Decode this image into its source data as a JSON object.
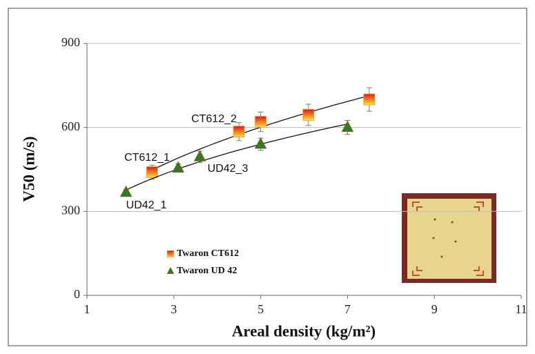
{
  "chart_data": {
    "type": "scatter",
    "x_label": "Areal density (kg/m²)",
    "y_label": "V50 (m/s)",
    "xlim": [
      1,
      11
    ],
    "xticks": [
      1,
      3,
      5,
      7,
      9,
      11
    ],
    "ylim": [
      0,
      900
    ],
    "yticks": [
      0,
      300,
      600,
      900
    ],
    "grid": true,
    "trendline": true,
    "series": [
      {
        "name": "Twaron CT612",
        "color": "#f29a1f",
        "marker": "square",
        "x": [
          2.5,
          4.5,
          5,
          6.1,
          7.5
        ],
        "values": [
          440,
          585,
          620,
          645,
          700
        ],
        "errors": [
          25,
          32,
          35,
          38,
          42
        ]
      },
      {
        "name": "Twaron UD 42",
        "color": "#2e7d22",
        "marker": "triangle",
        "x": [
          1.9,
          3.1,
          3.6,
          5,
          7
        ],
        "values": [
          368,
          455,
          495,
          540,
          600
        ],
        "errors": [
          10,
          15,
          20,
          22,
          25
        ]
      }
    ],
    "annotations": [
      "CT612_1",
      "CT612_2",
      "UD42_3",
      "UD42_1"
    ]
  }
}
